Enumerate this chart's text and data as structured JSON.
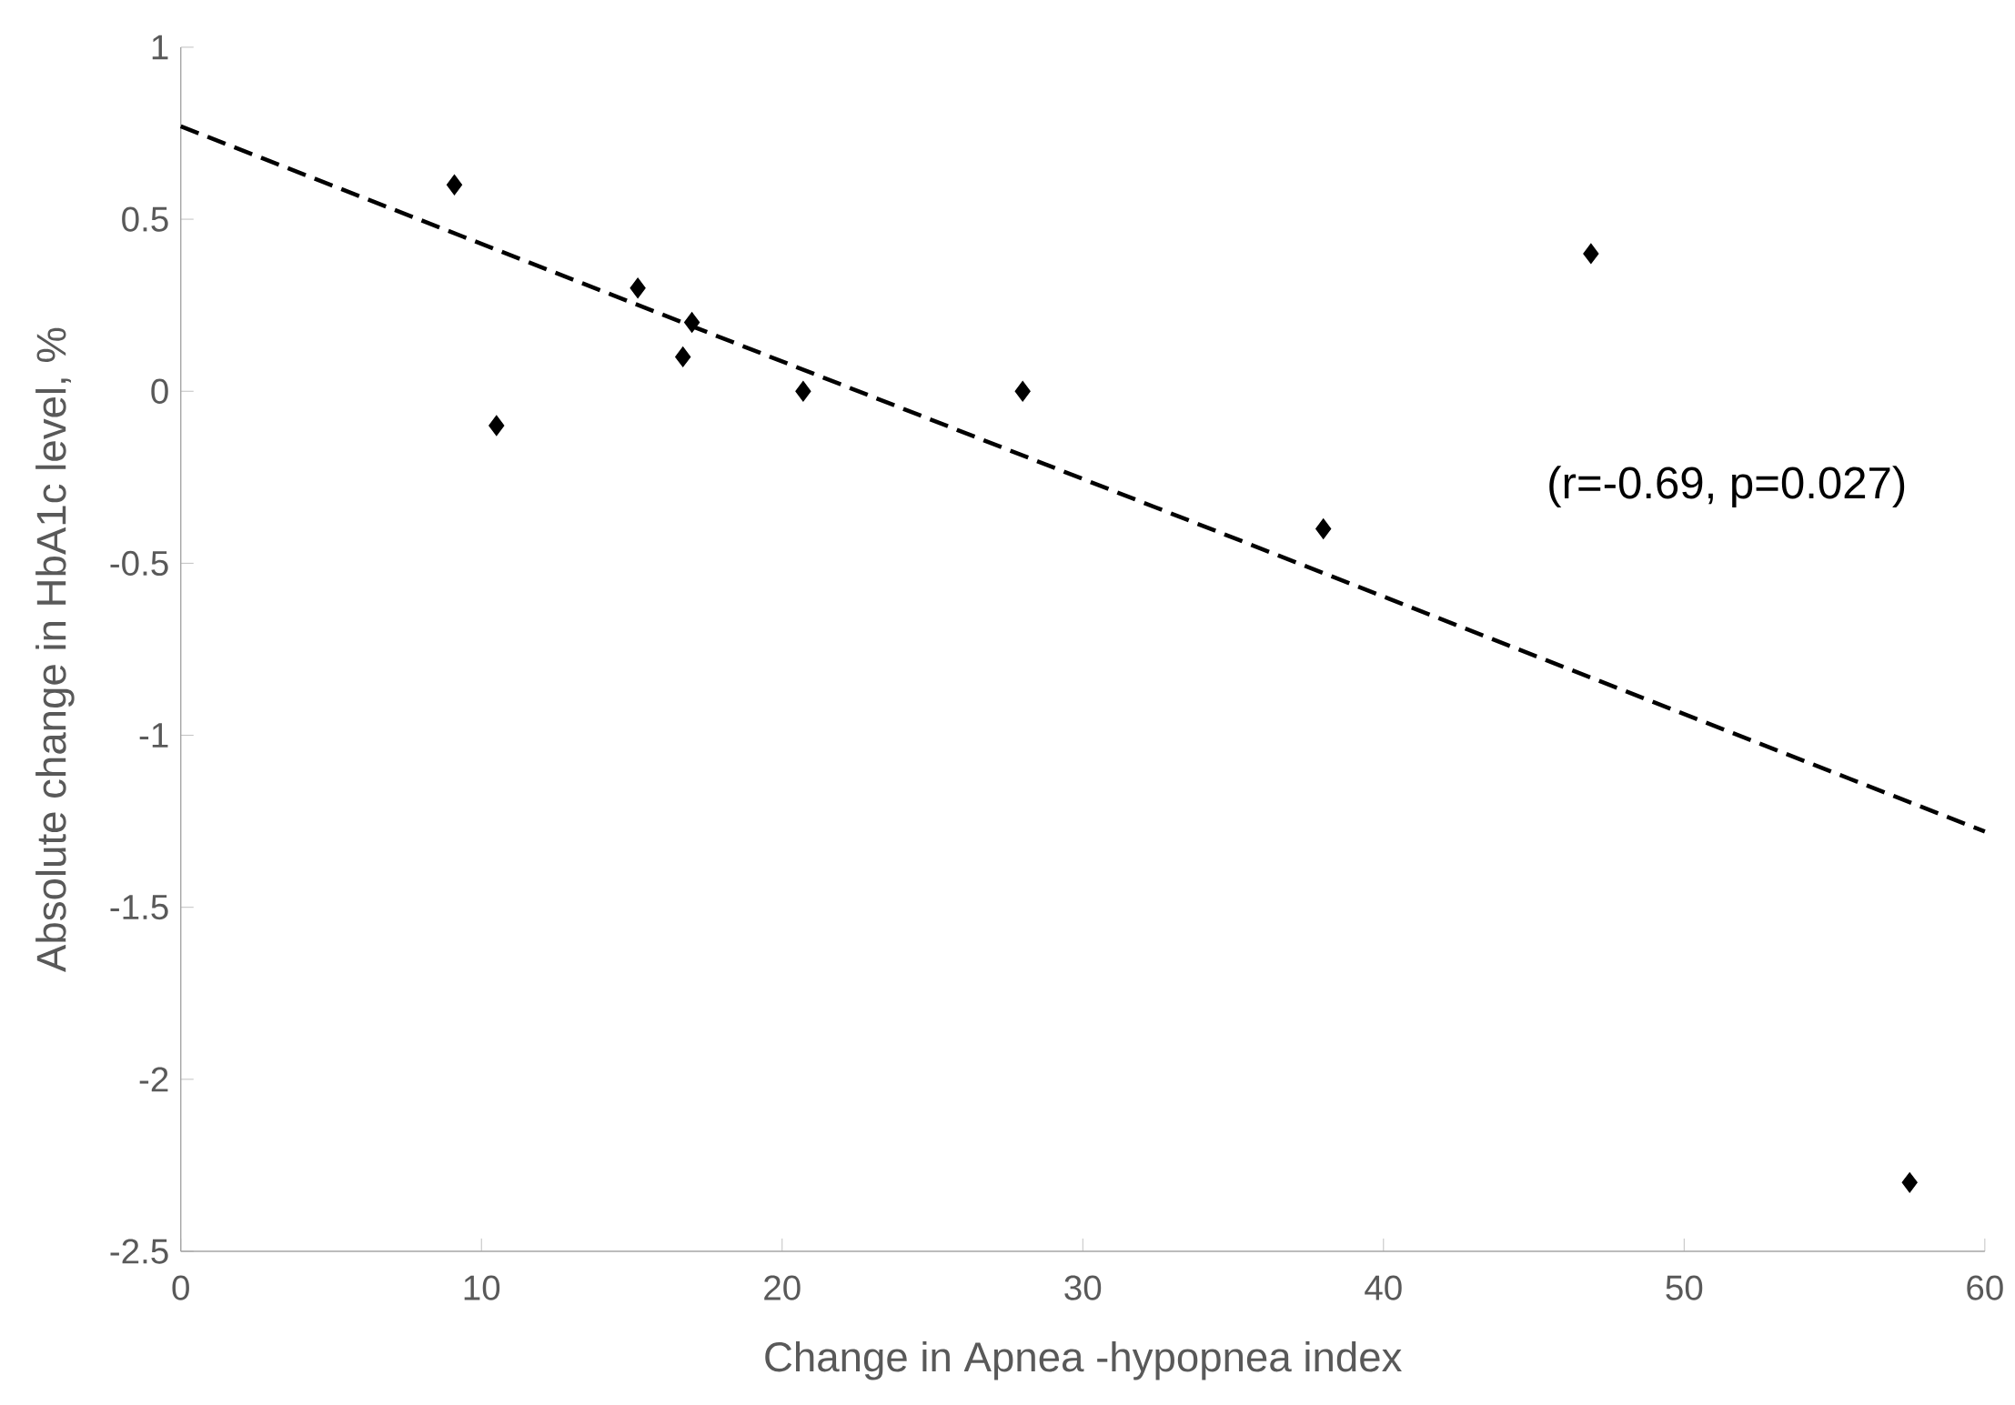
{
  "chart_data": {
    "type": "scatter",
    "xlabel": "Change in Apnea -hypopnea index",
    "ylabel": "Absolute change in HbA1c level, %",
    "series": [
      {
        "color": "#000000",
        "marker": "diamond",
        "x": [
          9.1,
          10.5,
          15.2,
          17.0,
          16.7,
          20.7,
          28.0,
          38.0,
          46.9,
          57.5
        ],
        "values": [
          0.6,
          -0.1,
          0.3,
          0.2,
          0.1,
          0.0,
          0.0,
          -0.4,
          0.4,
          -2.3
        ]
      },
      {
        "type": "line",
        "color": "#000000",
        "marker": "none",
        "line_style": "dashed",
        "x": [
          0,
          60
        ],
        "values": [
          0.77,
          -1.28
        ]
      }
    ],
    "annotations": [
      "(r=-0.69, p=0.027)"
    ],
    "xlim": [
      0,
      60
    ],
    "ylim": [
      -2.5,
      1
    ],
    "xticks": [
      0,
      10,
      20,
      30,
      40,
      50,
      60
    ],
    "yticks": [
      -2.5,
      -2,
      -1.5,
      -1,
      -0.5,
      0,
      0.5,
      1
    ],
    "grid": false
  }
}
